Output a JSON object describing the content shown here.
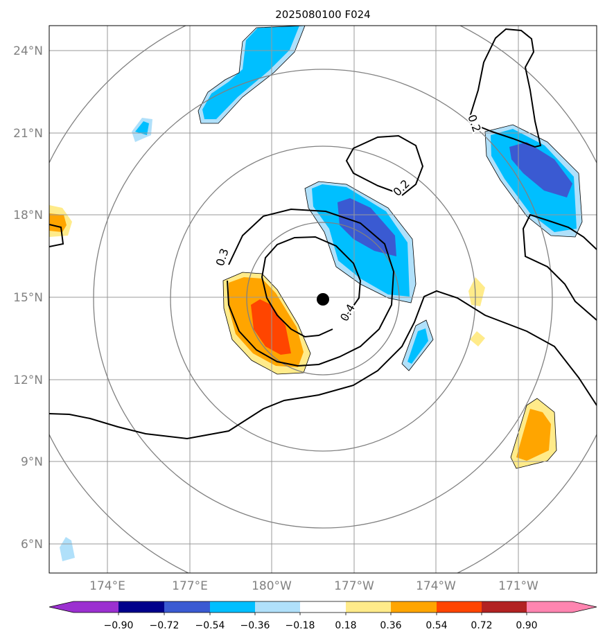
{
  "title": "2025080100 F024",
  "latitude_labels": [
    "6°N",
    "9°N",
    "12°N",
    "15°N",
    "18°N",
    "21°N",
    "24°N"
  ],
  "longitude_labels": [
    "174°E",
    "177°E",
    "180°W",
    "177°W",
    "174°W",
    "171°W"
  ],
  "contour_labels": [
    "0.2",
    "0.2",
    "0.3",
    "0.4"
  ],
  "colorbar": {
    "ticks": [
      "−0.90",
      "−0.72",
      "−0.54",
      "−0.36",
      "−0.18",
      "0.18",
      "0.36",
      "0.54",
      "0.72",
      "0.90"
    ],
    "colors": [
      "#9b30d0",
      "#00008b",
      "#3a5ad2",
      "#00bfff",
      "#b0e0fa",
      "#ffffff",
      "#ffeb8a",
      "#ffa500",
      "#ff4500",
      "#b22222",
      "#ff85b0"
    ]
  },
  "colors": {
    "grid": "#999999",
    "range_rings": "#808080",
    "contour": "#000000",
    "center_marker": "#000000"
  }
}
